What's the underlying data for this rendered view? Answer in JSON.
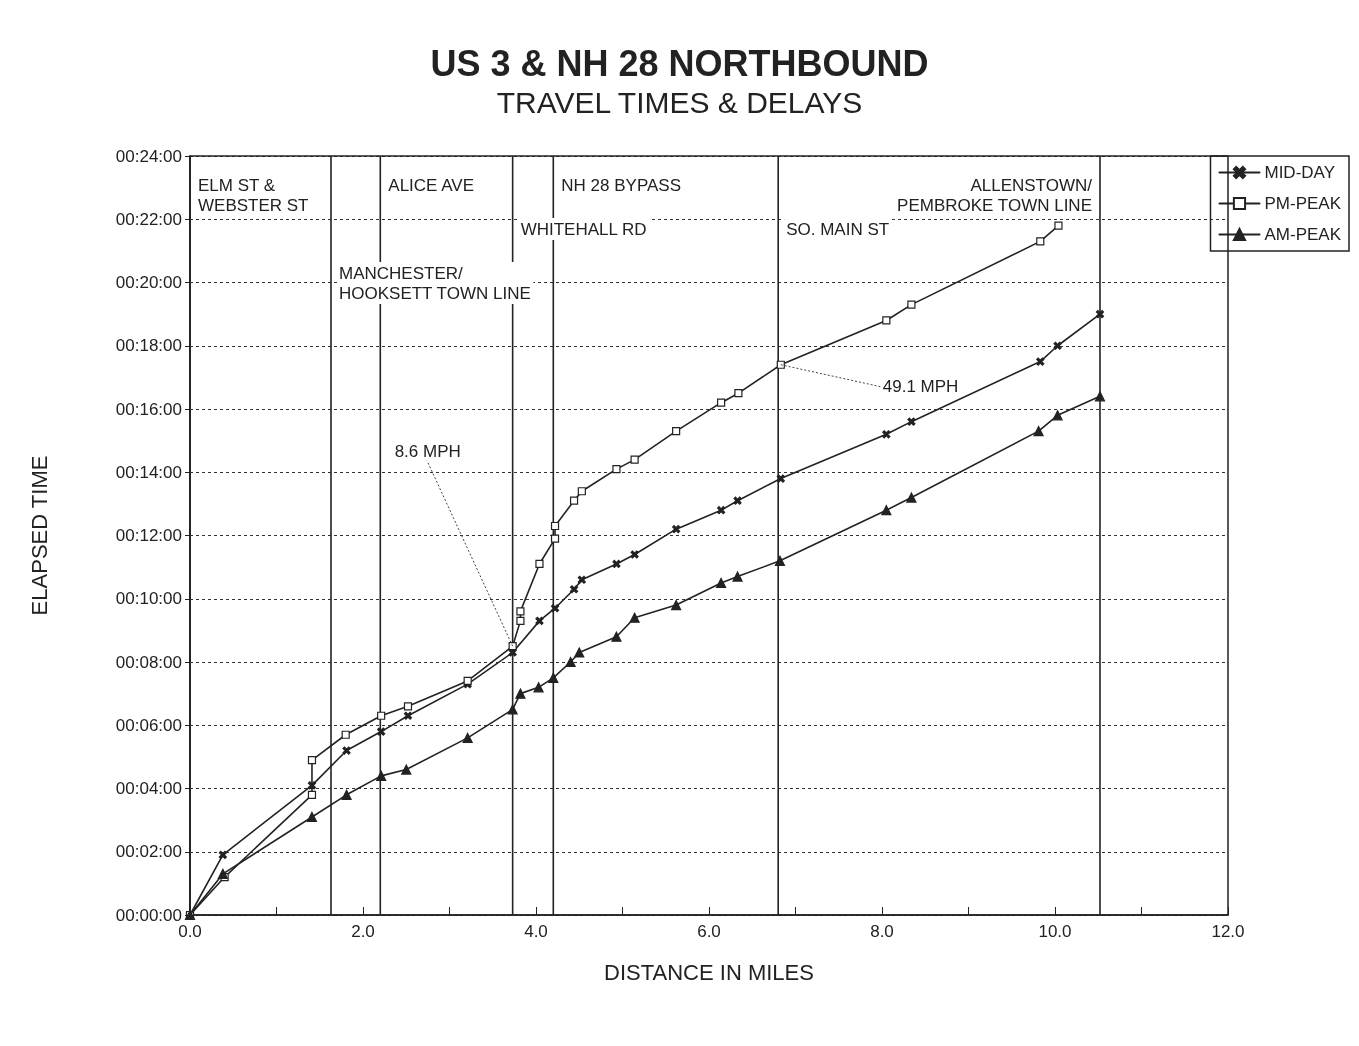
{
  "chart_data": {
    "type": "line",
    "title": "US 3 & NH 28 NORTHBOUND",
    "subtitle": "TRAVEL TIMES & DELAYS",
    "xlabel": "DISTANCE IN MILES",
    "ylabel": "ELAPSED TIME",
    "xlim": [
      0,
      12
    ],
    "xticks": [
      {
        "value": 0,
        "label": "0.0"
      },
      {
        "value": 1,
        "label": null
      },
      {
        "value": 2,
        "label": "2.0"
      },
      {
        "value": 3,
        "label": null
      },
      {
        "value": 4,
        "label": "4.0"
      },
      {
        "value": 5,
        "label": null
      },
      {
        "value": 6,
        "label": "6.0"
      },
      {
        "value": 7,
        "label": null
      },
      {
        "value": 8,
        "label": "8.0"
      },
      {
        "value": 9,
        "label": null
      },
      {
        "value": 10,
        "label": "10.0"
      },
      {
        "value": 11,
        "label": null
      },
      {
        "value": 12,
        "label": "12.0"
      }
    ],
    "ylim": [
      0,
      24
    ],
    "yticks": [
      {
        "value": 0,
        "label": "00:00:00"
      },
      {
        "value": 2,
        "label": "00:02:00"
      },
      {
        "value": 4,
        "label": "00:04:00"
      },
      {
        "value": 6,
        "label": "00:06:00"
      },
      {
        "value": 8,
        "label": "00:08:00"
      },
      {
        "value": 10,
        "label": "00:10:00"
      },
      {
        "value": 12,
        "label": "00:12:00"
      },
      {
        "value": 14,
        "label": "00:14:00"
      },
      {
        "value": 16,
        "label": "00:16:00"
      },
      {
        "value": 18,
        "label": "00:18:00"
      },
      {
        "value": 20,
        "label": "00:20:00"
      },
      {
        "value": 22,
        "label": "00:22:00"
      },
      {
        "value": 24,
        "label": "00:24:00"
      }
    ],
    "grid": "y",
    "legend": "right",
    "line_style": "solid",
    "series": [
      {
        "name": "MID-DAY",
        "color": "#222222",
        "marker": "cross",
        "x": [
          0,
          0.38,
          1.41,
          1.81,
          2.21,
          2.52,
          3.21,
          3.73,
          4.04,
          4.22,
          4.44,
          4.53,
          4.93,
          5.14,
          5.62,
          6.14,
          6.33,
          6.83,
          8.05,
          8.34,
          9.83,
          10.03,
          10.52
        ],
        "values": [
          0,
          1.9,
          4.1,
          5.2,
          5.8,
          6.3,
          7.3,
          8.3,
          9.3,
          9.7,
          10.3,
          10.6,
          11.1,
          11.4,
          12.2,
          12.8,
          13.1,
          13.8,
          15.2,
          15.6,
          17.5,
          18.0,
          19.0
        ]
      },
      {
        "name": "PM-PEAK",
        "color": "#222222",
        "marker": "square",
        "x": [
          0,
          0.4,
          1.41,
          1.41,
          1.8,
          2.21,
          2.52,
          3.21,
          3.73,
          3.82,
          3.82,
          4.04,
          4.22,
          4.22,
          4.44,
          4.53,
          4.93,
          5.14,
          5.62,
          6.14,
          6.34,
          6.83,
          8.05,
          8.34,
          9.83,
          10.04
        ],
        "values": [
          0,
          1.2,
          3.8,
          4.9,
          5.7,
          6.3,
          6.6,
          7.4,
          8.5,
          9.3,
          9.6,
          11.1,
          11.9,
          12.3,
          13.1,
          13.4,
          14.1,
          14.4,
          15.3,
          16.2,
          16.5,
          17.4,
          18.8,
          19.3,
          21.3,
          21.8
        ]
      },
      {
        "name": "AM-PEAK",
        "color": "#222222",
        "marker": "triangle",
        "x": [
          0,
          0.38,
          1.41,
          1.81,
          2.21,
          2.5,
          3.21,
          3.73,
          3.82,
          4.03,
          4.2,
          4.4,
          4.5,
          4.93,
          5.14,
          5.62,
          6.14,
          6.33,
          6.82,
          8.05,
          8.34,
          9.81,
          10.03,
          10.52
        ],
        "values": [
          0,
          1.3,
          3.1,
          3.8,
          4.4,
          4.6,
          5.6,
          6.5,
          7.0,
          7.2,
          7.5,
          8.0,
          8.3,
          8.8,
          9.4,
          9.8,
          10.5,
          10.7,
          11.2,
          12.8,
          13.2,
          15.3,
          15.8,
          16.4
        ]
      }
    ],
    "ref_lines": [
      {
        "axis": "x",
        "value": 0,
        "label": "ELM ST &\nWEBSTER ST"
      },
      {
        "axis": "x",
        "value": 1.63,
        "label": "MANCHESTER/\nHOOKSETT TOWN LINE"
      },
      {
        "axis": "x",
        "value": 2.2,
        "label": "ALICE AVE"
      },
      {
        "axis": "x",
        "value": 3.73,
        "label": "WHITEHALL RD"
      },
      {
        "axis": "x",
        "value": 4.2,
        "label": "NH 28 BYPASS"
      },
      {
        "axis": "x",
        "value": 6.8,
        "label": "SO. MAIN ST"
      },
      {
        "axis": "x",
        "value": 10.52,
        "label": "ALLENSTOWN/\nPEMBROKE TOWN LINE"
      }
    ],
    "annotations": [
      {
        "text": "8.6 MPH",
        "x": 3.73,
        "y": 8.5
      },
      {
        "text": "49.1 MPH",
        "x": 6.83,
        "y": 17.4
      }
    ]
  }
}
